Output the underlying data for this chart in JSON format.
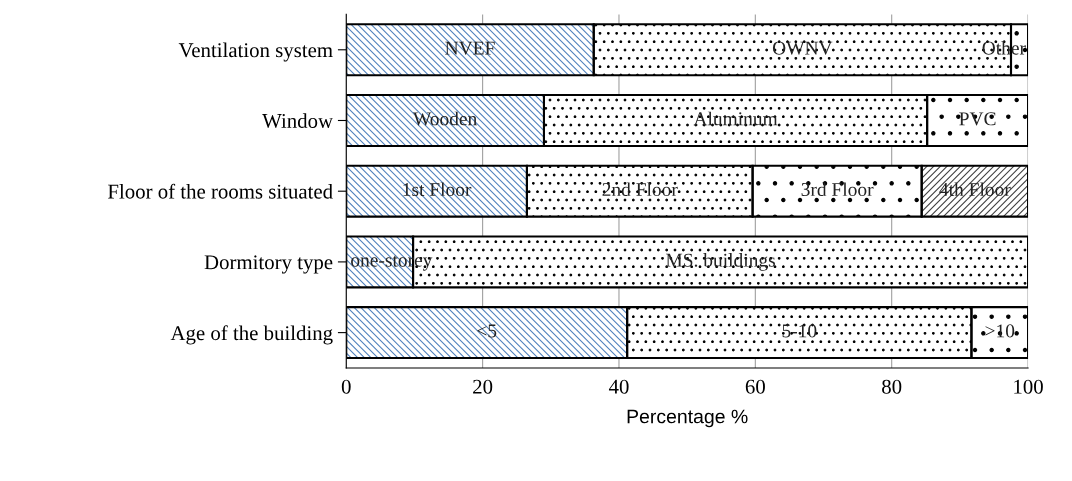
{
  "chart_data": {
    "type": "bar",
    "orientation": "horizontal",
    "stacked": true,
    "categories": [
      "Ventilation system",
      "Window",
      "Floor of the rooms situated",
      "Dormitory type",
      "Age of the building"
    ],
    "series": [
      {
        "color": "#4f81bd",
        "values": [
          36.3,
          29.0,
          26.5,
          9.8,
          41.2
        ]
      },
      {
        "color": "#000000",
        "values": [
          61.2,
          56.2,
          33.1,
          90.2,
          50.5
        ]
      },
      {
        "color": "#000000",
        "values": [
          2.5,
          14.8,
          24.8,
          null,
          8.3
        ]
      },
      {
        "color": "#404040",
        "values": [
          null,
          null,
          15.6,
          null,
          null
        ]
      }
    ],
    "annotations": [
      "NVEF",
      "OWNV",
      "Other",
      "Wooden",
      "Aluminum",
      "PVC",
      "1st Floor",
      "2nd Floor",
      "3rd Floor",
      "4th Floor",
      "one-storey",
      "MS. buildings",
      "<5",
      "5-10",
      ">10"
    ],
    "xlabel": "Percentage %",
    "xlim": [
      0,
      100
    ],
    "xticks": [
      0,
      20,
      40,
      60,
      80,
      100
    ],
    "grid": "x"
  }
}
